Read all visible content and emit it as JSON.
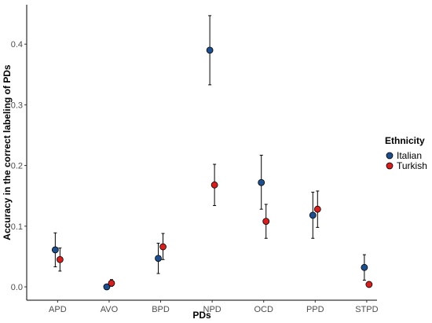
{
  "chart_data": {
    "type": "scatter",
    "xlabel": "PDs",
    "ylabel": "Accuracy in the correct labeling of PDs",
    "categories": [
      "APD",
      "AVO",
      "BPD",
      "NPD",
      "OCD",
      "PPD",
      "STPD"
    ],
    "ylim": [
      -0.022,
      0.465
    ],
    "yticks": [
      0.0,
      0.1,
      0.2,
      0.3,
      0.4
    ],
    "ytick_labels": [
      "0.0",
      "0.1",
      "0.2",
      "0.3",
      "0.4"
    ],
    "grid": false,
    "legend": {
      "title": "Ethnicity",
      "position": "right",
      "entries": [
        "Italian",
        "Turkish"
      ]
    },
    "series": [
      {
        "name": "Italian",
        "color": "#1f4e8c",
        "values": [
          0.061,
          0.0,
          0.047,
          0.39,
          0.172,
          0.118,
          0.032
        ],
        "error_low": [
          0.033,
          0.0,
          0.022,
          0.333,
          0.128,
          0.08,
          0.011
        ],
        "error_high": [
          0.089,
          0.0,
          0.072,
          0.447,
          0.217,
          0.156,
          0.053
        ]
      },
      {
        "name": "Turkish",
        "color": "#d62020",
        "values": [
          0.045,
          0.006,
          0.066,
          0.168,
          0.108,
          0.128,
          0.004
        ],
        "error_low": [
          0.026,
          0.001,
          0.045,
          0.134,
          0.08,
          0.098,
          0.001
        ],
        "error_high": [
          0.064,
          0.012,
          0.088,
          0.202,
          0.136,
          0.158,
          0.008
        ]
      }
    ]
  }
}
